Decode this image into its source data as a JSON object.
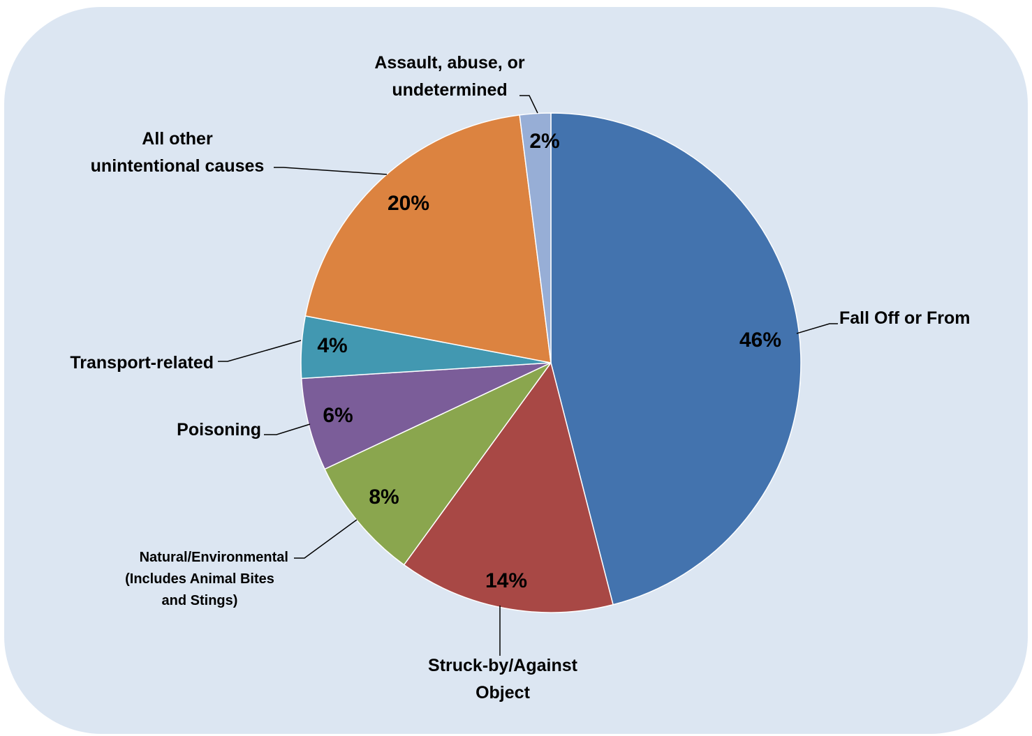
{
  "chart_data": {
    "type": "pie",
    "title": "",
    "background": "#dce6f2",
    "slices": [
      {
        "name": "Fall Off or From",
        "value": 46,
        "label": "46%",
        "color": "#4373ae"
      },
      {
        "name": "Struck-by/Against Object",
        "value": 14,
        "label": "14%",
        "color": "#a84845"
      },
      {
        "name": "Natural/Environmental (Includes Animal Bites and Stings)",
        "value": 8,
        "label": "8%",
        "color": "#8aa64e"
      },
      {
        "name": "Poisoning",
        "value": 6,
        "label": "6%",
        "color": "#7b5d99"
      },
      {
        "name": "Transport-related",
        "value": 4,
        "label": "4%",
        "color": "#4298b1"
      },
      {
        "name": "All other unintentional causes",
        "value": 20,
        "label": "20%",
        "color": "#dc8340"
      },
      {
        "name": "Assault, abuse, or undetermined",
        "value": 2,
        "label": "2%",
        "color": "#97aed6"
      }
    ]
  },
  "labels": {
    "fall": [
      "Fall Off or From"
    ],
    "struck": [
      "Struck-by/Against",
      "Object"
    ],
    "natural": [
      "Natural/Environmental",
      "(Includes Animal Bites",
      "and Stings)"
    ],
    "poisoning": [
      "Poisoning"
    ],
    "transport": [
      "Transport-related"
    ],
    "other": [
      "All other",
      "unintentional causes"
    ],
    "assault": [
      "Assault, abuse, or",
      "undetermined"
    ]
  }
}
